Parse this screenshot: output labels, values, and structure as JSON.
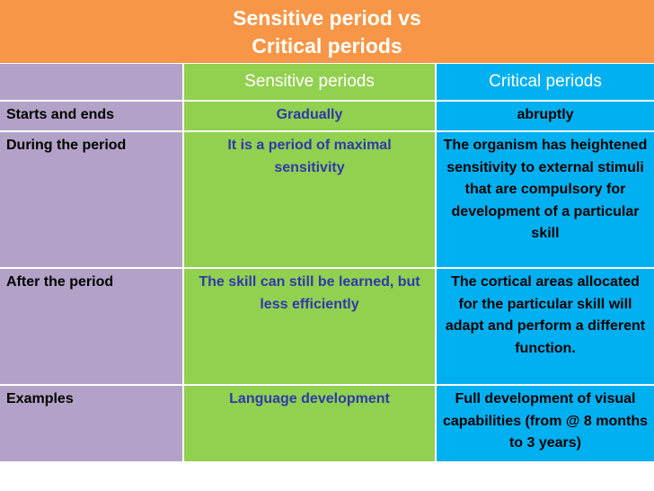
{
  "title": {
    "line1": "Sensitive period vs",
    "line2": "Critical periods"
  },
  "header": {
    "blank": "",
    "sensitive": "Sensitive periods",
    "critical": "Critical periods"
  },
  "rows": [
    {
      "label": "Starts and ends",
      "sensitive": "Gradually",
      "critical": "abruptly"
    },
    {
      "label": "During the period",
      "sensitive": "It is a period of maximal sensitivity",
      "critical": "The organism has heightened sensitivity to external stimuli that are compulsory for development of a particular skill"
    },
    {
      "label": "After the period",
      "sensitive": "The skill can still be learned, but less efficiently",
      "critical": "The cortical areas allocated for the particular skill will adapt and perform a different function."
    },
    {
      "label": "Examples",
      "sensitive": "Language development",
      "critical": "Full development of visual capabilities (from @ 8 months to 3 years)"
    }
  ],
  "colors": {
    "title_bg": "#f79646",
    "label_col_bg": "#b3a2c7",
    "sensitive_col_bg": "#92d050",
    "critical_col_bg": "#00b0f0",
    "sensitive_text": "#2e3aa8"
  }
}
